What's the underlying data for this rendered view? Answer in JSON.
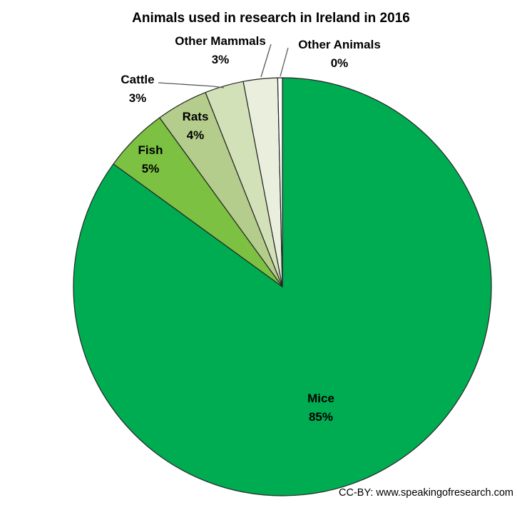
{
  "title": "Animals used in research in Ireland in 2016",
  "attribution": "CC-BY: www.speakingofresearch.com",
  "chart_data": {
    "type": "pie",
    "title": "Animals used in research in Ireland in 2016",
    "unit": "percent",
    "direction": "clockwise",
    "start_angle_deg": 0,
    "legend_position": "none",
    "labels_style": "outside-with-leader-lines-for-small-slices",
    "border_color": "#262626",
    "leader_line_color": "#595959",
    "background_color": "#ffffff",
    "slices": [
      {
        "id": "mice",
        "label": "Mice",
        "value_pct": 85,
        "pct_label": "85%",
        "color": "#00AC52"
      },
      {
        "id": "fish",
        "label": "Fish",
        "value_pct": 5,
        "pct_label": "5%",
        "color": "#7CC142"
      },
      {
        "id": "rats",
        "label": "Rats",
        "value_pct": 4,
        "pct_label": "4%",
        "color": "#B4CD8C"
      },
      {
        "id": "cattle",
        "label": "Cattle",
        "value_pct": 3,
        "pct_label": "3%",
        "color": "#D3E1B8"
      },
      {
        "id": "other_mammals",
        "label": "Other Mammals",
        "value_pct": 3,
        "pct_label": "3%",
        "color": "#E9EFDC"
      },
      {
        "id": "other_animals",
        "label": "Other Animals",
        "value_pct": 0,
        "pct_label": "0%",
        "color": "#FFFFFF"
      }
    ]
  }
}
